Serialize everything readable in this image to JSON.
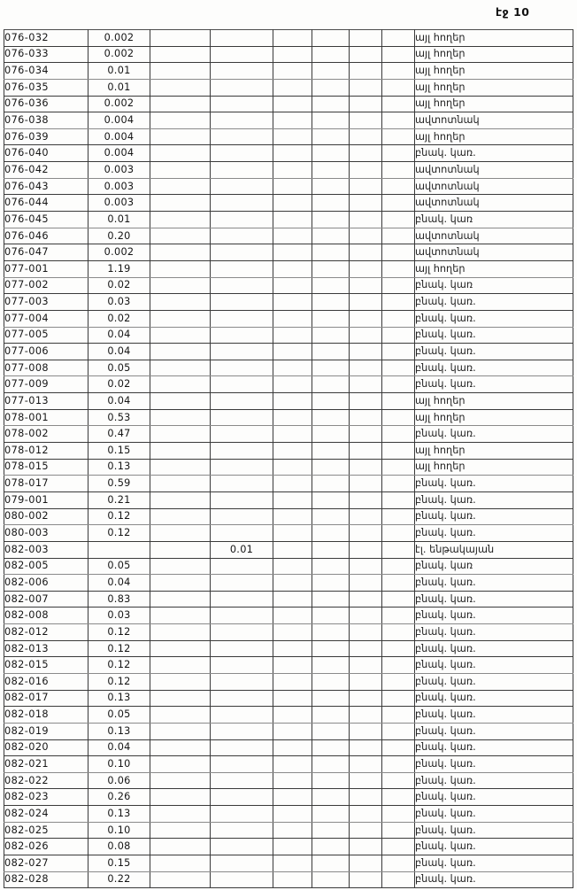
{
  "document": {
    "page_label": "էջ 10"
  },
  "table": {
    "rows": [
      {
        "code": "076-032",
        "value": "0.002",
        "col4": "",
        "label": "այլ հողեր"
      },
      {
        "code": "076-033",
        "value": "0.002",
        "col4": "",
        "label": "այլ հողեր"
      },
      {
        "code": "076-034",
        "value": "0.01",
        "col4": "",
        "label": "այլ հողեր"
      },
      {
        "code": "076-035",
        "value": "0.01",
        "col4": "",
        "label": "այլ հողեր"
      },
      {
        "code": "076-036",
        "value": "0.002",
        "col4": "",
        "label": "այլ հողեր"
      },
      {
        "code": "076-038",
        "value": "0.004",
        "col4": "",
        "label": "ավտոտնակ"
      },
      {
        "code": "076-039",
        "value": "0.004",
        "col4": "",
        "label": "այլ հողեր"
      },
      {
        "code": "076-040",
        "value": "0.004",
        "col4": "",
        "label": "բնակ. կառ."
      },
      {
        "code": "076-042",
        "value": "0.003",
        "col4": "",
        "label": "ավտոտնակ"
      },
      {
        "code": "076-043",
        "value": "0.003",
        "col4": "",
        "label": "ավտոտնակ"
      },
      {
        "code": "076-044",
        "value": "0.003",
        "col4": "",
        "label": "ավտոտնակ"
      },
      {
        "code": "076-045",
        "value": "0.01",
        "col4": "",
        "label": "բնակ. կառ"
      },
      {
        "code": "076-046",
        "value": "0.20",
        "col4": "",
        "label": "ավտոտնակ"
      },
      {
        "code": "076-047",
        "value": "0.002",
        "col4": "",
        "label": "ավտոտնակ"
      },
      {
        "code": "077-001",
        "value": "1.19",
        "col4": "",
        "label": "այլ հողեր"
      },
      {
        "code": "077-002",
        "value": "0.02",
        "col4": "",
        "label": "բնակ. կառ"
      },
      {
        "code": "077-003",
        "value": "0.03",
        "col4": "",
        "label": "բնակ. կառ."
      },
      {
        "code": "077-004",
        "value": "0.02",
        "col4": "",
        "label": "բնակ. կառ."
      },
      {
        "code": "077-005",
        "value": "0.04",
        "col4": "",
        "label": "բնակ. կառ."
      },
      {
        "code": "077-006",
        "value": "0.04",
        "col4": "",
        "label": "բնակ. կառ."
      },
      {
        "code": "077-008",
        "value": "0.05",
        "col4": "",
        "label": "բնակ. կառ."
      },
      {
        "code": "077-009",
        "value": "0.02",
        "col4": "",
        "label": "բնակ. կառ."
      },
      {
        "code": "077-013",
        "value": "0.04",
        "col4": "",
        "label": "այլ հողեր"
      },
      {
        "code": "078-001",
        "value": "0.53",
        "col4": "",
        "label": "այլ հողեր"
      },
      {
        "code": "078-002",
        "value": "0.47",
        "col4": "",
        "label": "բնակ. կառ."
      },
      {
        "code": "078-012",
        "value": "0.15",
        "col4": "",
        "label": "այլ հողեր"
      },
      {
        "code": "078-015",
        "value": "0.13",
        "col4": "",
        "label": "այլ հողեր"
      },
      {
        "code": "078-017",
        "value": "0.59",
        "col4": "",
        "label": "բնակ. կառ."
      },
      {
        "code": "079-001",
        "value": "0.21",
        "col4": "",
        "label": "բնակ. կառ."
      },
      {
        "code": "080-002",
        "value": "0.12",
        "col4": "",
        "label": "բնակ. կառ."
      },
      {
        "code": "080-003",
        "value": "0.12",
        "col4": "",
        "label": "բնակ. կառ."
      },
      {
        "code": "082-003",
        "value": "",
        "col4": "0.01",
        "label": "էլ. ենթակայան"
      },
      {
        "code": "082-005",
        "value": "0.05",
        "col4": "",
        "label": "բնակ. կառ"
      },
      {
        "code": "082-006",
        "value": "0.04",
        "col4": "",
        "label": "բնակ. կառ."
      },
      {
        "code": "082-007",
        "value": "0.83",
        "col4": "",
        "label": "բնակ. կառ."
      },
      {
        "code": "082-008",
        "value": "0.03",
        "col4": "",
        "label": "բնակ. կառ."
      },
      {
        "code": "082-012",
        "value": "0.12",
        "col4": "",
        "label": "բնակ. կառ."
      },
      {
        "code": "082-013",
        "value": "0.12",
        "col4": "",
        "label": "բնակ. կառ."
      },
      {
        "code": "082-015",
        "value": "0.12",
        "col4": "",
        "label": "բնակ. կառ."
      },
      {
        "code": "082-016",
        "value": "0.12",
        "col4": "",
        "label": "բնակ. կառ."
      },
      {
        "code": "082-017",
        "value": "0.13",
        "col4": "",
        "label": "բնակ. կառ."
      },
      {
        "code": "082-018",
        "value": "0.05",
        "col4": "",
        "label": "բնակ. կառ."
      },
      {
        "code": "082-019",
        "value": "0.13",
        "col4": "",
        "label": "բնակ. կառ."
      },
      {
        "code": "082-020",
        "value": "0.04",
        "col4": "",
        "label": "բնակ. կառ."
      },
      {
        "code": "082-021",
        "value": "0.10",
        "col4": "",
        "label": "բնակ. կառ."
      },
      {
        "code": "082-022",
        "value": "0.06",
        "col4": "",
        "label": "բնակ. կառ."
      },
      {
        "code": "082-023",
        "value": "0.26",
        "col4": "",
        "label": "բնակ. կառ."
      },
      {
        "code": "082-024",
        "value": "0.13",
        "col4": "",
        "label": "բնակ. կառ."
      },
      {
        "code": "082-025",
        "value": "0.10",
        "col4": "",
        "label": "բնակ. կառ."
      },
      {
        "code": "082-026",
        "value": "0.08",
        "col4": "",
        "label": "բնակ. կառ."
      },
      {
        "code": "082-027",
        "value": "0.15",
        "col4": "",
        "label": "բնակ. կառ."
      },
      {
        "code": "082-028",
        "value": "0.22",
        "col4": "",
        "label": "բնակ. կառ."
      }
    ]
  }
}
